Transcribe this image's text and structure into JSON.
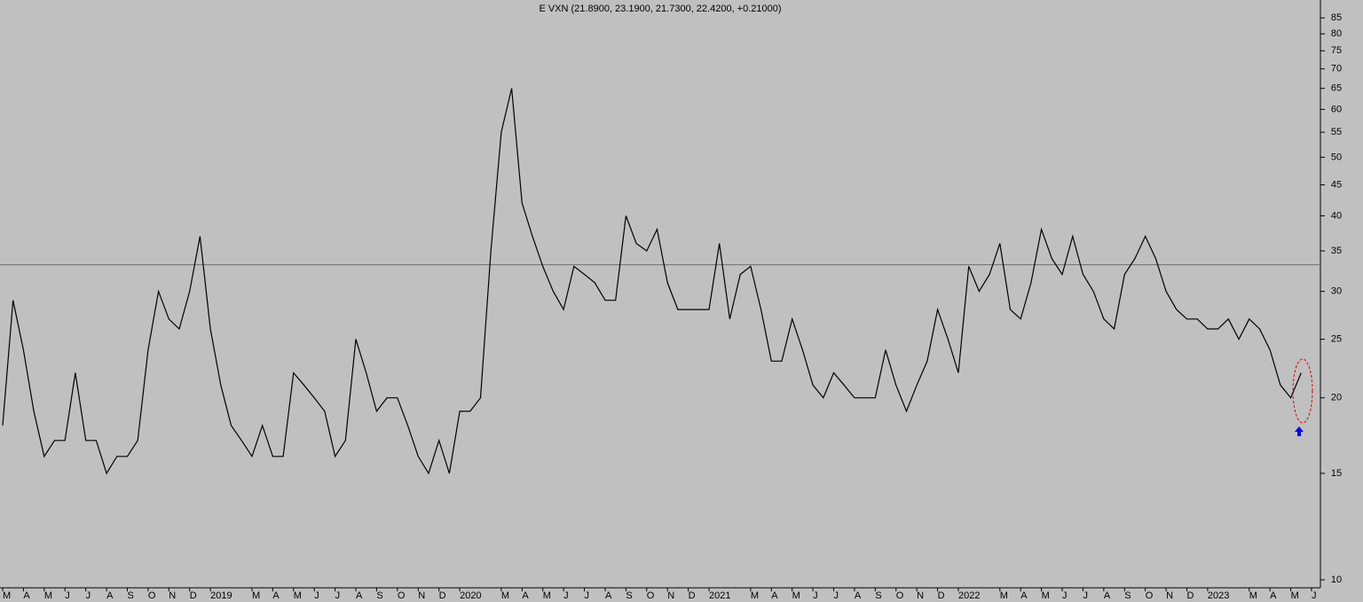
{
  "chart_data": {
    "type": "line",
    "title": "E VXN (21.8900, 23.1900, 21.7300, 22.4200, +0.21000)",
    "log_scale": true,
    "ylim": [
      9.7,
      91
    ],
    "yticks": [
      10,
      15,
      20,
      25,
      30,
      35,
      40,
      45,
      50,
      55,
      60,
      65,
      70,
      75,
      80,
      85
    ],
    "reference_line": 33.2,
    "categories": [
      "M",
      null,
      "A",
      null,
      "M",
      null,
      "J",
      null,
      "J",
      null,
      "A",
      null,
      "S",
      null,
      "O",
      null,
      "N",
      null,
      "D",
      null,
      "2019",
      null,
      null,
      null,
      "M",
      null,
      "A",
      null,
      "M",
      null,
      "J",
      null,
      "J",
      null,
      "A",
      null,
      "S",
      null,
      "O",
      null,
      "N",
      null,
      "D",
      null,
      "2020",
      null,
      null,
      null,
      "M",
      null,
      "A",
      null,
      "M",
      null,
      "J",
      null,
      "J",
      null,
      "A",
      null,
      "S",
      null,
      "O",
      null,
      "N",
      null,
      "D",
      null,
      "2021",
      null,
      null,
      null,
      "M",
      null,
      "A",
      null,
      "M",
      null,
      "J",
      null,
      "J",
      null,
      "A",
      null,
      "S",
      null,
      "O",
      null,
      "N",
      null,
      "D",
      null,
      "2022",
      null,
      null,
      null,
      "M",
      null,
      "A",
      null,
      "M",
      null,
      "J",
      null,
      "J",
      null,
      "A",
      null,
      "S",
      null,
      "O",
      null,
      "N",
      null,
      "D",
      null,
      "2023",
      null,
      null,
      null,
      "M",
      null,
      "A",
      null,
      "M",
      null,
      "J",
      null
    ],
    "series": [
      {
        "color": "#000000",
        "values": [
          18,
          29,
          24,
          19,
          16,
          17,
          17,
          22,
          17,
          17,
          15,
          16,
          16,
          17,
          24,
          30,
          27,
          26,
          30,
          37,
          26,
          21,
          18,
          17,
          16,
          18,
          16,
          16,
          22,
          21,
          20,
          19,
          16,
          17,
          25,
          22,
          19,
          20,
          20,
          18,
          16,
          15,
          17,
          15,
          19,
          19,
          20,
          35,
          55,
          65,
          42,
          37,
          33,
          30,
          28,
          33,
          32,
          31,
          29,
          29,
          40,
          36,
          35,
          38,
          31,
          28,
          28,
          28,
          28,
          36,
          27,
          32,
          33,
          28,
          23,
          23,
          27,
          24,
          21,
          20,
          22,
          21,
          20,
          20,
          20,
          24,
          21,
          19,
          21,
          23,
          28,
          25,
          22,
          33,
          30,
          32,
          36,
          28,
          27,
          31,
          38,
          34,
          32,
          37,
          32,
          30,
          27,
          26,
          32,
          34,
          37,
          34,
          30,
          28,
          27,
          27,
          26,
          26,
          27,
          25,
          27,
          26,
          24,
          21,
          20,
          22,
          null,
          null
        ]
      }
    ]
  }
}
